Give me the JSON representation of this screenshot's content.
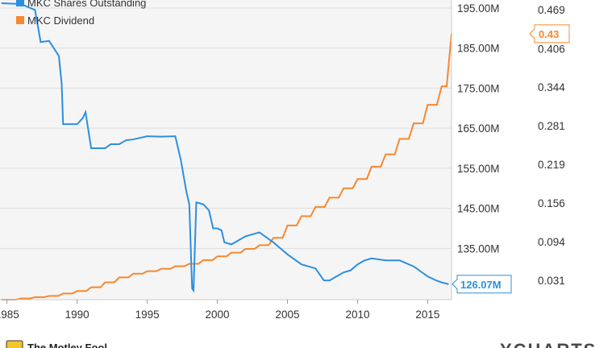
{
  "chart_data": {
    "type": "line",
    "x_ticks": [
      "1985",
      "1990",
      "1995",
      "2000",
      "2005",
      "2010",
      "2015"
    ],
    "x_range": [
      1984.5,
      2016.7
    ],
    "left_axis": {
      "ticks": [
        "195.00M",
        "185.00M",
        "175.00M",
        "165.00M",
        "155.00M",
        "145.00M",
        "135.00M"
      ],
      "tick_values": [
        195,
        185,
        175,
        165,
        155,
        145,
        135
      ],
      "range": [
        122.2,
        197.0
      ],
      "unit": "M"
    },
    "right_axis": {
      "ticks": [
        "0.469",
        "0.406",
        "0.344",
        "0.281",
        "0.219",
        "0.156",
        "0.094",
        "0.031"
      ],
      "tick_values": [
        0.469,
        0.406,
        0.344,
        0.281,
        0.219,
        0.156,
        0.094,
        0.031
      ],
      "range": [
        0.0,
        0.4845
      ]
    },
    "grid": "horizontal",
    "legend_position": "top-left",
    "series": [
      {
        "name": "MKC Shares Outstanding",
        "color": "#2b8fe0",
        "axis": "left",
        "last_value_label": "126.07M",
        "x": [
          1984.6,
          1986.0,
          1987.0,
          1987.4,
          1988.0,
          1988.7,
          1988.9,
          1989.0,
          1989.5,
          1990.0,
          1990.4,
          1990.6,
          1991.0,
          1991.5,
          1992.0,
          1992.4,
          1993.0,
          1993.5,
          1994.0,
          1995.0,
          1996.0,
          1997.0,
          1997.4,
          1997.8,
          1998.0,
          1998.2,
          1998.3,
          1998.5,
          1999.0,
          1999.4,
          1999.7,
          2000.0,
          2000.3,
          2000.5,
          2001.0,
          2002.0,
          2003.0,
          2004.0,
          2005.0,
          2006.0,
          2007.0,
          2007.6,
          2008.0,
          2008.5,
          2009.0,
          2009.5,
          2010.0,
          2010.5,
          2011.0,
          2012.0,
          2013.0,
          2014.0,
          2015.0,
          2015.6,
          2016.0,
          2016.5
        ],
        "y": [
          196.2,
          196.0,
          194.5,
          186.5,
          186.8,
          183.0,
          176.0,
          166.0,
          166.0,
          166.0,
          167.5,
          169.0,
          160.0,
          160.0,
          160.0,
          161.0,
          161.0,
          162.0,
          162.2,
          163.0,
          162.9,
          163.0,
          157.0,
          149.0,
          146.0,
          125.0,
          124.5,
          146.5,
          146.0,
          144.5,
          140.0,
          140.0,
          139.5,
          136.5,
          136.0,
          138.0,
          139.0,
          136.5,
          133.5,
          131.0,
          130.0,
          127.0,
          127.0,
          128.0,
          129.0,
          129.5,
          131.0,
          132.0,
          132.5,
          132.0,
          132.0,
          130.5,
          128.0,
          127.0,
          126.5,
          126.07
        ]
      },
      {
        "name": "MKC Dividend",
        "color": "#f7882f",
        "axis": "right",
        "last_value_label": "0.43",
        "step_years": [
          1984.6,
          1986,
          1987,
          1988,
          1989,
          1990,
          1991,
          1992,
          1993,
          1994,
          1995,
          1996,
          1997,
          1998,
          1999,
          2000,
          2001,
          2002,
          2003,
          2004,
          2005,
          2006,
          2007,
          2008,
          2009,
          2010,
          2011,
          2012,
          2013,
          2014,
          2015,
          2016,
          2016.7
        ],
        "step_values": [
          0.0,
          0.002,
          0.004,
          0.006,
          0.01,
          0.014,
          0.02,
          0.028,
          0.036,
          0.042,
          0.046,
          0.05,
          0.054,
          0.058,
          0.064,
          0.07,
          0.076,
          0.082,
          0.088,
          0.1,
          0.12,
          0.135,
          0.15,
          0.165,
          0.18,
          0.195,
          0.215,
          0.235,
          0.26,
          0.285,
          0.315,
          0.345,
          0.43
        ]
      }
    ]
  },
  "footer": {
    "logo_text": "The Motley Fool",
    "brand": "YCHARTS"
  }
}
